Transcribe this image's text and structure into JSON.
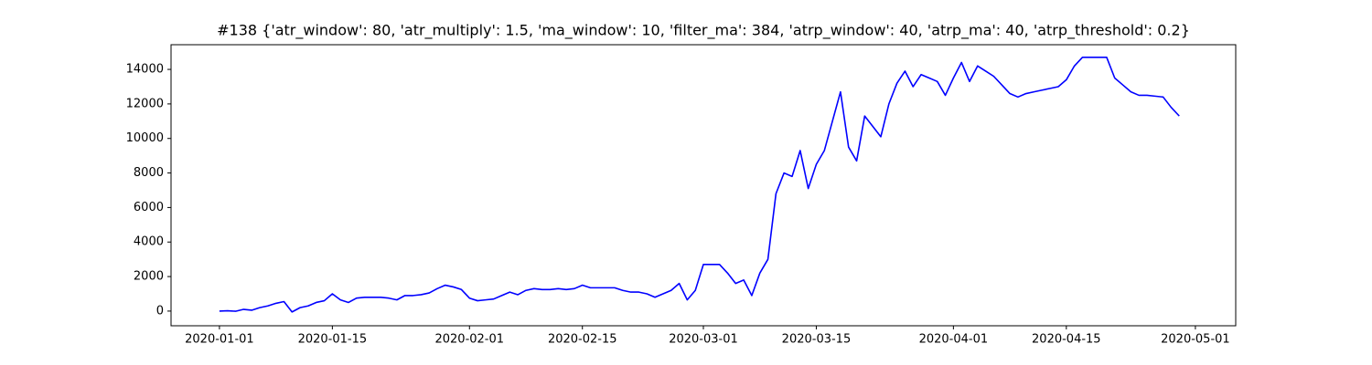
{
  "chart_data": {
    "type": "line",
    "title": "#138 {'atr_window': 80, 'atr_multiply': 1.5, 'ma_window': 10, 'filter_ma': 384, 'atrp_window': 40, 'atrp_ma': 40, 'atrp_threshold': 0.2}",
    "x": [
      "2020-01-01",
      "2020-01-02",
      "2020-01-03",
      "2020-01-04",
      "2020-01-05",
      "2020-01-06",
      "2020-01-07",
      "2020-01-08",
      "2020-01-09",
      "2020-01-10",
      "2020-01-11",
      "2020-01-12",
      "2020-01-13",
      "2020-01-14",
      "2020-01-15",
      "2020-01-16",
      "2020-01-17",
      "2020-01-18",
      "2020-01-19",
      "2020-01-20",
      "2020-01-21",
      "2020-01-22",
      "2020-01-23",
      "2020-01-24",
      "2020-01-25",
      "2020-01-26",
      "2020-01-27",
      "2020-01-28",
      "2020-01-29",
      "2020-01-30",
      "2020-01-31",
      "2020-02-01",
      "2020-02-02",
      "2020-02-03",
      "2020-02-04",
      "2020-02-05",
      "2020-02-06",
      "2020-02-07",
      "2020-02-08",
      "2020-02-09",
      "2020-02-10",
      "2020-02-11",
      "2020-02-12",
      "2020-02-13",
      "2020-02-14",
      "2020-02-15",
      "2020-02-16",
      "2020-02-17",
      "2020-02-18",
      "2020-02-19",
      "2020-02-20",
      "2020-02-21",
      "2020-02-22",
      "2020-02-23",
      "2020-02-24",
      "2020-02-25",
      "2020-02-26",
      "2020-02-27",
      "2020-02-28",
      "2020-02-29",
      "2020-03-01",
      "2020-03-02",
      "2020-03-03",
      "2020-03-04",
      "2020-03-05",
      "2020-03-06",
      "2020-03-07",
      "2020-03-08",
      "2020-03-09",
      "2020-03-10",
      "2020-03-11",
      "2020-03-12",
      "2020-03-13",
      "2020-03-14",
      "2020-03-15",
      "2020-03-16",
      "2020-03-17",
      "2020-03-18",
      "2020-03-19",
      "2020-03-20",
      "2020-03-21",
      "2020-03-22",
      "2020-03-23",
      "2020-03-24",
      "2020-03-25",
      "2020-03-26",
      "2020-03-27",
      "2020-03-28",
      "2020-03-29",
      "2020-03-30",
      "2020-03-31",
      "2020-04-01",
      "2020-04-02",
      "2020-04-03",
      "2020-04-04",
      "2020-04-05",
      "2020-04-06",
      "2020-04-07",
      "2020-04-08",
      "2020-04-09",
      "2020-04-10",
      "2020-04-11",
      "2020-04-12",
      "2020-04-13",
      "2020-04-14",
      "2020-04-15",
      "2020-04-16",
      "2020-04-17",
      "2020-04-18",
      "2020-04-19",
      "2020-04-20",
      "2020-04-21",
      "2020-04-22",
      "2020-04-23",
      "2020-04-24",
      "2020-04-25",
      "2020-04-26",
      "2020-04-27",
      "2020-04-28",
      "2020-04-29"
    ],
    "series": [
      {
        "color": "#0000ff",
        "values": [
          0,
          20,
          -10,
          100,
          50,
          200,
          300,
          450,
          550,
          -50,
          200,
          300,
          500,
          600,
          1000,
          650,
          500,
          750,
          800,
          800,
          800,
          750,
          650,
          900,
          900,
          950,
          1050,
          1300,
          1500,
          1400,
          1250,
          750,
          600,
          650,
          700,
          900,
          1100,
          950,
          1200,
          1300,
          1250,
          1250,
          1300,
          1250,
          1300,
          1500,
          1350,
          1350,
          1350,
          1350,
          1200,
          1100,
          1100,
          1000,
          800,
          1000,
          1200,
          1600,
          650,
          1200,
          2700,
          2700,
          2700,
          2200,
          1600,
          1800,
          900,
          2200,
          3000,
          6800,
          8000,
          7800,
          9300,
          7100,
          8500,
          9300,
          11000,
          12700,
          9500,
          8700,
          11300,
          10700,
          10100,
          12000,
          13200,
          13900,
          13000,
          13700,
          13500,
          13300,
          12500,
          13500,
          14400,
          13300,
          14200,
          13900,
          13600,
          13100,
          12600,
          12400,
          12600,
          12700,
          12800,
          12900,
          13000,
          13400,
          14200,
          14700,
          14700,
          14700,
          14700,
          13500,
          13100,
          12700,
          12500,
          12500,
          12450,
          12400,
          11800,
          11300
        ]
      }
    ],
    "xlim": [
      "2019-12-26",
      "2020-05-06"
    ],
    "xticks": [
      "2020-01-01",
      "2020-01-15",
      "2020-02-01",
      "2020-02-15",
      "2020-03-01",
      "2020-03-15",
      "2020-04-01",
      "2020-04-15",
      "2020-05-01"
    ],
    "ylim": [
      -850,
      15430
    ],
    "yticks": [
      0,
      2000,
      4000,
      6000,
      8000,
      10000,
      12000,
      14000
    ]
  }
}
